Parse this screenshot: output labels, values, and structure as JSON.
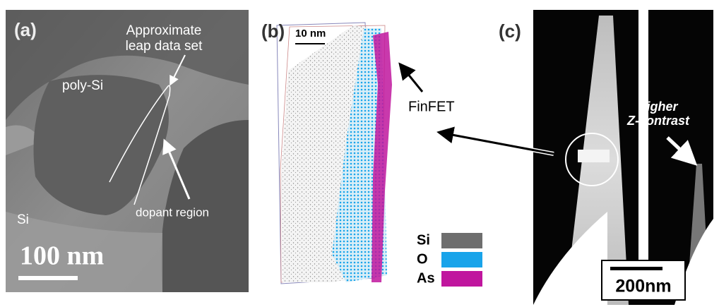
{
  "panels": {
    "a": {
      "label": "(a)",
      "annotation": [
        "Approximate",
        "leap data set"
      ],
      "region_1": "poly-Si",
      "region_2": "Si",
      "dopant": "dopant region",
      "scale": "100 nm"
    },
    "b": {
      "label": "(b)",
      "scale": "10 nm",
      "pointer": "FinFET",
      "legend": [
        {
          "label": "Si",
          "color": "#6e6e6e"
        },
        {
          "label": "O",
          "color": "#19a4ea"
        },
        {
          "label": "As",
          "color": "#c0169e"
        }
      ]
    },
    "c": {
      "label": "(c)",
      "annotation": [
        "higher",
        "Z-contrast"
      ],
      "scale": "200nm"
    }
  }
}
